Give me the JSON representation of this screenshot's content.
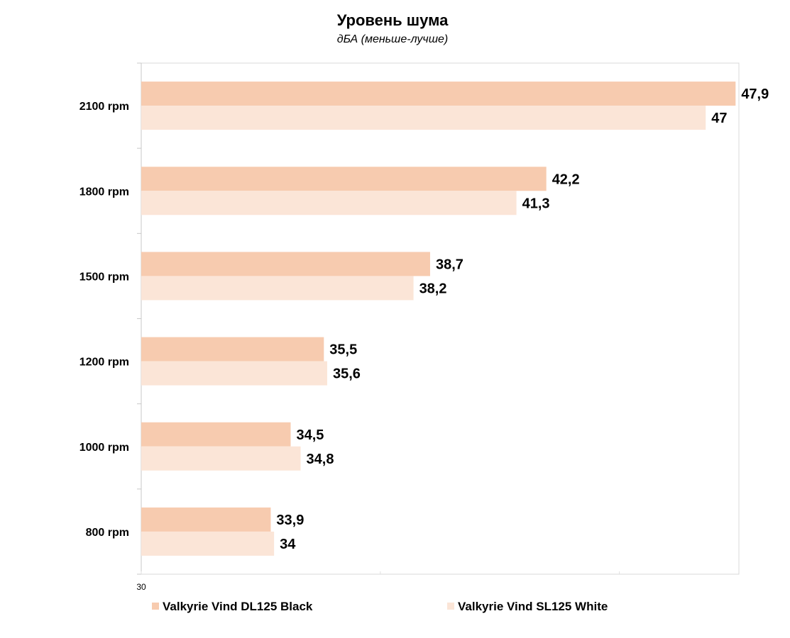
{
  "chart_data": {
    "type": "bar",
    "orientation": "horizontal",
    "title": "Уровень шума",
    "subtitle": "дБА (меньше-лучше)",
    "categories": [
      "2100 rpm",
      "1800 rpm",
      "1500 rpm",
      "1200 rpm",
      "1000 rpm",
      "800 rpm"
    ],
    "series": [
      {
        "name": "Valkyrie Vind DL125 Black",
        "color": "#f7cbaf",
        "values": [
          47.9,
          42.2,
          38.7,
          35.5,
          34.5,
          33.9
        ],
        "labels": [
          "47,9",
          "42,2",
          "38,7",
          "35,5",
          "34,5",
          "33,9"
        ]
      },
      {
        "name": "Valkyrie Vind SL125 White",
        "color": "#fbe5d7",
        "values": [
          47,
          41.3,
          38.2,
          35.6,
          34.8,
          34
        ],
        "labels": [
          "47",
          "41,3",
          "38,2",
          "35,6",
          "34,8",
          "34"
        ]
      }
    ],
    "x_tick_labels": [
      "30"
    ],
    "xlim": [
      30,
      48
    ],
    "grid": false,
    "legend_position": "bottom"
  }
}
